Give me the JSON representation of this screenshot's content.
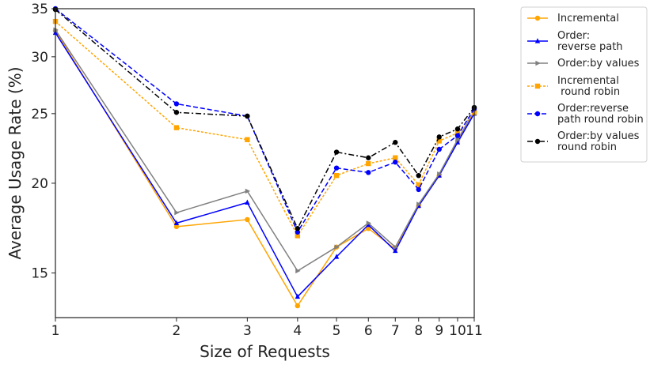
{
  "chart_data": {
    "type": "line",
    "title": "",
    "xlabel": "Size of Requests",
    "ylabel": "Average Usage Rate (%)",
    "x_scale": "log",
    "y_scale": "log",
    "xlim": [
      1,
      11
    ],
    "ylim": [
      13.0,
      35
    ],
    "x_ticks": [
      1,
      2,
      3,
      4,
      5,
      6,
      7,
      8,
      9,
      10,
      11
    ],
    "y_ticks": [
      15,
      20,
      25,
      30,
      35
    ],
    "grid": false,
    "legend_position": "outside-top-right",
    "x": [
      1,
      2,
      3,
      4,
      5,
      6,
      7,
      8,
      9,
      10,
      11
    ],
    "series": [
      {
        "name": "Incremental",
        "color": "#ffa500",
        "line_style": "solid",
        "marker": "circle",
        "values": [
          32.6,
          17.4,
          17.8,
          13.5,
          16.3,
          17.3,
          16.2,
          18.6,
          20.5,
          22.9,
          25.1
        ]
      },
      {
        "name": "Order:\nreverse path",
        "color": "#0000ff",
        "line_style": "solid",
        "marker": "triangle-up",
        "values": [
          32.4,
          17.6,
          18.8,
          13.9,
          15.8,
          17.5,
          16.1,
          18.6,
          20.5,
          22.8,
          25.0
        ]
      },
      {
        "name": "Order:by values",
        "color": "#808080",
        "line_style": "solid",
        "marker": "triangle-right",
        "values": [
          32.7,
          18.2,
          19.5,
          15.1,
          16.3,
          17.6,
          16.3,
          18.7,
          20.6,
          23.0,
          25.2
        ]
      },
      {
        "name": "Incremental\n round robin",
        "color": "#ffa500",
        "line_style": "dotted",
        "marker": "square",
        "values": [
          33.6,
          23.9,
          23.0,
          16.9,
          20.5,
          21.3,
          21.7,
          19.9,
          22.9,
          23.5,
          25.1
        ]
      },
      {
        "name": "Order:reverse\npath round robin",
        "color": "#0000ff",
        "line_style": "dashed",
        "marker": "circle",
        "values": [
          35.0,
          25.8,
          24.8,
          17.1,
          21.0,
          20.7,
          21.4,
          19.6,
          22.3,
          23.3,
          25.4
        ]
      },
      {
        "name": "Order:by values\nround robin",
        "color": "#000000",
        "line_style": "dashdot",
        "marker": "circle",
        "values": [
          34.9,
          25.1,
          24.8,
          17.3,
          22.1,
          21.7,
          22.8,
          20.5,
          23.2,
          23.8,
          25.5
        ]
      }
    ]
  }
}
